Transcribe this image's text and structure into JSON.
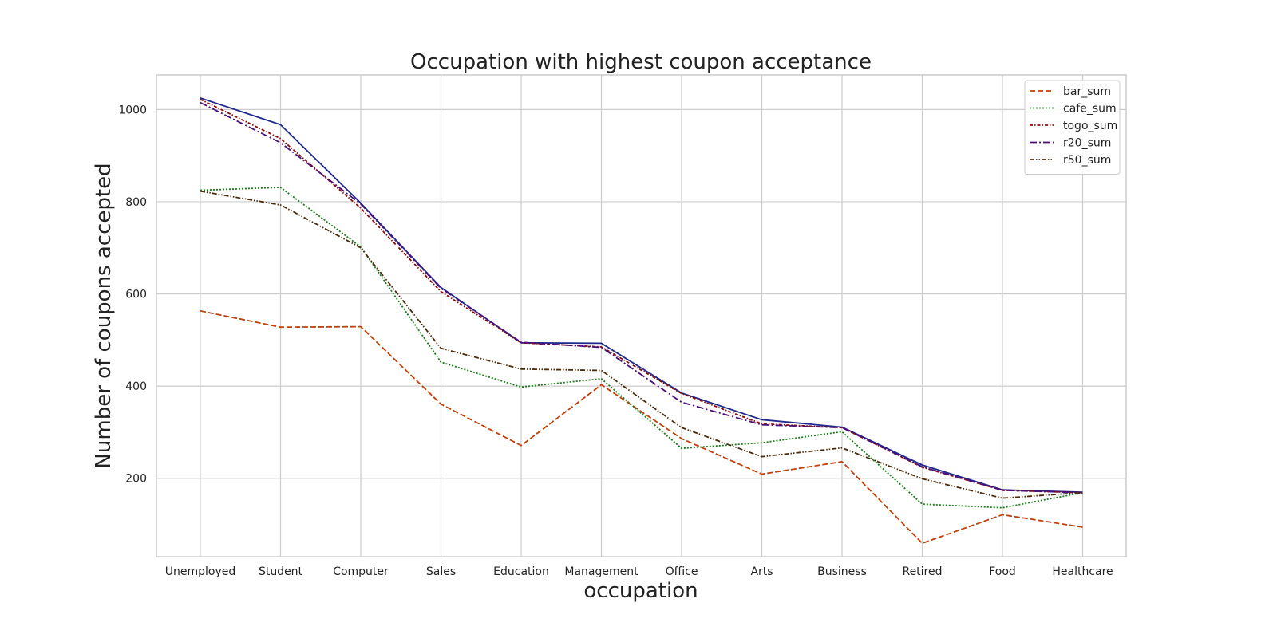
{
  "chart_data": {
    "type": "line",
    "title": "Occupation with highest coupon acceptance",
    "xlabel": "occupation",
    "ylabel": "Number of coupons accepted",
    "categories": [
      "Unemployed",
      "Student",
      "Computer",
      "Sales",
      "Education",
      "Management",
      "Office",
      "Arts",
      "Business",
      "Retired",
      "Food",
      "Healthcare"
    ],
    "yticks": [
      200,
      400,
      600,
      800,
      1000
    ],
    "ylim": [
      30,
      1075
    ],
    "grid": true,
    "legend_position": "top-right",
    "series": [
      {
        "name": "",
        "color": "#1f2a8c",
        "dash": "solid",
        "values": [
          1025,
          967,
          797,
          614,
          494,
          493,
          385,
          327,
          311,
          229,
          175,
          170
        ]
      },
      {
        "name": "bar_sum",
        "color": "#c0400a",
        "dash": "dashed",
        "values": [
          563,
          528,
          529,
          361,
          271,
          403,
          286,
          209,
          236,
          59,
          121,
          94
        ]
      },
      {
        "name": "cafe_sum",
        "color": "#1a7a1a",
        "dash": "dotted",
        "values": [
          825,
          831,
          702,
          452,
          398,
          416,
          265,
          277,
          301,
          144,
          136,
          169
        ]
      },
      {
        "name": "togo_sum",
        "color": "#8b0a0a",
        "dash": "dashdot-dense",
        "values": [
          1022,
          937,
          786,
          605,
          494,
          485,
          384,
          318,
          310,
          224,
          174,
          169
        ]
      },
      {
        "name": "r20_sum",
        "color": "#4b0f7a",
        "dash": "dashdot",
        "values": [
          1015,
          928,
          795,
          612,
          495,
          484,
          365,
          316,
          310,
          225,
          174,
          169
        ]
      },
      {
        "name": "r50_sum",
        "color": "#4a2a0a",
        "dash": "dashdotdot",
        "values": [
          823,
          793,
          700,
          482,
          437,
          434,
          310,
          247,
          266,
          199,
          157,
          169
        ]
      }
    ]
  }
}
